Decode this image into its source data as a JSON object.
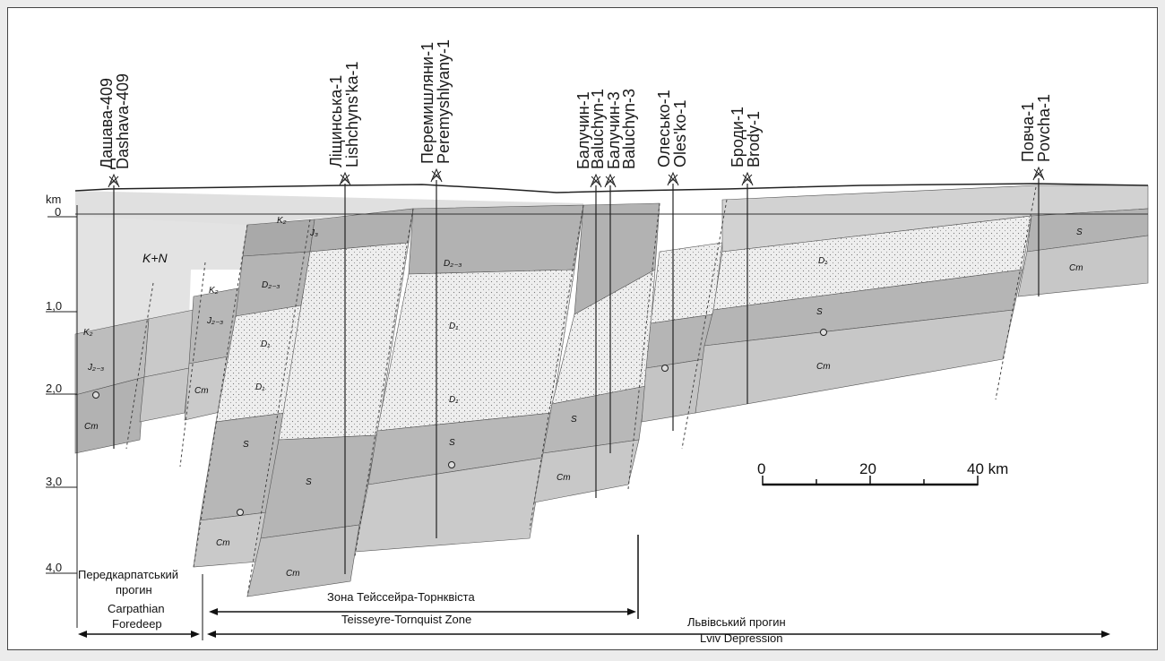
{
  "depth_axis": {
    "unit": "km",
    "ticks": [
      "0",
      "1,0",
      "2,0",
      "3,0",
      "4,0"
    ]
  },
  "wells": [
    {
      "ua": "Дашава-409",
      "en": "Dashava-409"
    },
    {
      "ua": "Ліщинська-1",
      "en": "Lishchyns'ka-1"
    },
    {
      "ua": "Перемишляни-1",
      "en": "Peremyshlyany-1"
    },
    {
      "ua": "Балучин-1",
      "en": "Baluchyn-1"
    },
    {
      "ua": "Балучин-3",
      "en": "Baluchyn-3"
    },
    {
      "ua": "Олесько-1",
      "en": "Oles'ko-1"
    },
    {
      "ua": "Броди-1",
      "en": "Brody-1"
    },
    {
      "ua": "Повча-1",
      "en": "Povcha-1"
    }
  ],
  "units": {
    "kn": "K+N",
    "k2": "K₂",
    "j3": "J₃",
    "j23": "J₂₋₃",
    "d23": "D₂₋₃",
    "d1": "D₁",
    "s": "S",
    "cm": "Cm"
  },
  "zones": {
    "foredeep_ua_1": "Передкарпатський",
    "foredeep_ua_2": "прогин",
    "foredeep_en_1": "Carpathian",
    "foredeep_en_2": "Foredeep",
    "tt_ua": "Зона Тейссейра-Торнквіста",
    "tt_en": "Teisseyre-Tornquist Zone",
    "lviv_ua": "Львівський прогин",
    "lviv_en": "Lviv Depression"
  },
  "scale_bar": {
    "labels": [
      "0",
      "20",
      "40 km"
    ]
  },
  "colors": {
    "light": "#e2e2e2",
    "mid": "#c4c4c4",
    "dark": "#a7a7a7",
    "dotted": "#ececec",
    "line": "#222222"
  }
}
